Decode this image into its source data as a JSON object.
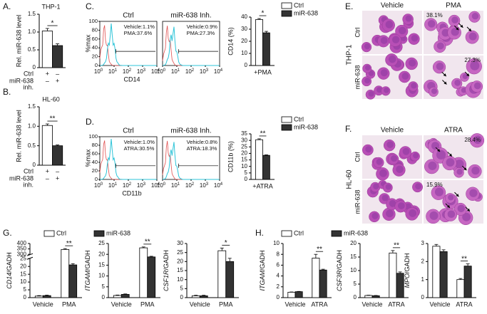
{
  "panel_labels": [
    "A.",
    "B.",
    "C.",
    "D.",
    "E.",
    "F.",
    "G.",
    "H."
  ],
  "chart_data": [
    {
      "type": "bar",
      "title": "THP-1",
      "ylabel": "Rel. miR-638 level",
      "ylim": [
        0,
        1.5
      ],
      "yticks": [
        0,
        0.5,
        {
          "value": 1,
          "label": "1.0"
        },
        1.5
      ],
      "values": [
        1.03,
        0.62
      ],
      "errors": [
        0.07,
        0.05
      ],
      "colors": [
        "#ffffff",
        "#333333"
      ],
      "significance": "*",
      "conditions": [
        {
          "label": [
            "Ctrl"
          ],
          "marks": [
            "+",
            "–"
          ]
        },
        {
          "label": [
            "miR-638",
            "inh."
          ],
          "marks": [
            "–",
            "+"
          ]
        }
      ]
    },
    {
      "type": "bar",
      "title": "HL-60",
      "ylabel": "Rel. miR-638 level",
      "ylim": [
        0,
        1.5
      ],
      "yticks": [
        0,
        0.5,
        {
          "value": 1,
          "label": "1.0"
        },
        1.5
      ],
      "values": [
        1.02,
        0.5
      ],
      "errors": [
        0.04,
        0.02
      ],
      "colors": [
        "#ffffff",
        "#333333"
      ],
      "significance": "**",
      "conditions": [
        {
          "label": [
            "Ctrl"
          ],
          "marks": [
            "+",
            "–"
          ]
        },
        {
          "label": [
            "miR-638",
            "inh."
          ],
          "marks": [
            "–",
            "+"
          ]
        }
      ]
    },
    {
      "type": "bar",
      "ylabel": "CD14 (%)",
      "ylim": [
        0,
        40
      ],
      "yticks": [
        0,
        10,
        20,
        30,
        40
      ],
      "categories": [
        "+PMA"
      ],
      "legend": "top-right",
      "significance": [
        "*"
      ],
      "series": [
        {
          "name": "Ctrl",
          "color": "#ffffff",
          "values": [
            38
          ],
          "errors": [
            0.8
          ]
        },
        {
          "name": "miR-638",
          "color": "#333333",
          "values": [
            27
          ],
          "errors": [
            1.2
          ]
        }
      ]
    },
    {
      "type": "bar",
      "ylabel": "CD11b (%)",
      "ylim": [
        0,
        35
      ],
      "yticks": [
        0,
        5,
        10,
        15,
        20,
        25,
        30,
        35
      ],
      "categories": [
        "+ATRA"
      ],
      "legend": "top-right",
      "significance": [
        "**"
      ],
      "series": [
        {
          "name": "Ctrl",
          "color": "#ffffff",
          "values": [
            30.5
          ],
          "errors": [
            0.7
          ]
        },
        {
          "name": "miR-638",
          "color": "#333333",
          "values": [
            18.5
          ],
          "errors": [
            0.4
          ]
        }
      ]
    },
    {
      "type": "bar",
      "ylabel": [
        "CD14",
        "/GADH"
      ],
      "ylim": [
        0,
        400
      ],
      "ybreak": [
        25,
        300
      ],
      "yticks": [
        0,
        5,
        10,
        15,
        20,
        25,
        300,
        350,
        400
      ],
      "categories": [
        "Vehicle",
        "PMA"
      ],
      "legend": "top",
      "significance": [
        null,
        "**"
      ],
      "series": [
        {
          "name": "Ctrl",
          "color": "#ffffff",
          "values": [
            1,
            345
          ],
          "errors": [
            0.3,
            8
          ]
        },
        {
          "name": "miR-638",
          "color": "#333333",
          "values": [
            1.3,
            21
          ],
          "errors": [
            0.3,
            0.8
          ]
        }
      ]
    },
    {
      "type": "bar",
      "ylabel": [
        "ITGAM",
        "/GADH"
      ],
      "ylim": [
        0,
        25
      ],
      "yticks": [
        0,
        5,
        10,
        15,
        20,
        25
      ],
      "categories": [
        "Vehicle",
        "PMA"
      ],
      "significance": [
        null,
        "**"
      ],
      "series": [
        {
          "color": "#ffffff",
          "values": [
            1,
            23
          ],
          "errors": [
            0.2,
            0.4
          ]
        },
        {
          "color": "#333333",
          "values": [
            1.5,
            18.8
          ],
          "errors": [
            0.2,
            0.3
          ]
        }
      ]
    },
    {
      "type": "bar",
      "ylabel": [
        "CSF1R",
        "/GADH"
      ],
      "ylim": [
        0,
        30
      ],
      "yticks": [
        0,
        5,
        10,
        15,
        20,
        25,
        30
      ],
      "categories": [
        "Vehicle",
        "PMA"
      ],
      "significance": [
        null,
        "*"
      ],
      "series": [
        {
          "color": "#ffffff",
          "values": [
            1,
            26
          ],
          "errors": [
            0.3,
            1.5
          ]
        },
        {
          "color": "#333333",
          "values": [
            1,
            20
          ],
          "errors": [
            0.3,
            1.8
          ]
        }
      ]
    },
    {
      "type": "bar",
      "ylabel": [
        "ITGAM",
        "/GADH"
      ],
      "ylim": [
        0,
        10
      ],
      "yticks": [
        0,
        2,
        4,
        6,
        8,
        10
      ],
      "categories": [
        "Vehicle",
        "ATRA"
      ],
      "legend": "top",
      "significance": [
        null,
        "**"
      ],
      "series": [
        {
          "name": "Ctrl",
          "color": "#ffffff",
          "values": [
            1,
            7.3
          ],
          "errors": [
            0.05,
            0.7
          ]
        },
        {
          "name": "miR-638",
          "color": "#333333",
          "values": [
            1.1,
            5.1
          ],
          "errors": [
            0.05,
            0.15
          ]
        }
      ]
    },
    {
      "type": "bar",
      "ylabel": [
        "CSF3R",
        "/GADH"
      ],
      "ylim": [
        0,
        20
      ],
      "yticks": [
        0,
        5,
        10,
        15,
        20
      ],
      "categories": [
        "Vehicle",
        "ATRA"
      ],
      "significance": [
        null,
        "**"
      ],
      "series": [
        {
          "color": "#ffffff",
          "values": [
            0.8,
            16.5
          ],
          "errors": [
            0.1,
            0.9
          ]
        },
        {
          "color": "#333333",
          "values": [
            0.7,
            9
          ],
          "errors": [
            0.1,
            0.5
          ]
        }
      ]
    },
    {
      "type": "bar",
      "ylabel": [
        "MPO",
        "/GADH"
      ],
      "ylim": [
        0,
        3
      ],
      "yticks": [
        0,
        1,
        2,
        3
      ],
      "categories": [
        "Vehicle",
        "ATRA"
      ],
      "significance": [
        null,
        "**"
      ],
      "series": [
        {
          "color": "#ffffff",
          "values": [
            2.85,
            1.0
          ],
          "errors": [
            0.1,
            0.06
          ]
        },
        {
          "color": "#333333",
          "values": [
            2.55,
            1.75
          ],
          "errors": [
            0.1,
            0.12
          ]
        }
      ]
    }
  ],
  "flow": [
    {
      "xlabel": "CD14",
      "ylabel": "%max",
      "ylim": [
        0,
        100
      ],
      "yticks": [
        0,
        20,
        40,
        60,
        80,
        100
      ],
      "xtick_base": "10",
      "xtick_exponents": [
        "0",
        "1",
        "2",
        "3",
        "4"
      ],
      "plots": [
        {
          "title": "Ctrl",
          "stats": [
            "Vehicle:1.1%",
            "PMA:37.6%"
          ]
        },
        {
          "title": "miR-638 Inh.",
          "stats": [
            "Vehicle:0.9%",
            "PMA:27.3%"
          ]
        }
      ]
    },
    {
      "xlabel": "CD11b",
      "ylabel": "%max",
      "ylim": [
        0,
        100
      ],
      "yticks": [
        0,
        20,
        40,
        60,
        80,
        100
      ],
      "xtick_base": "10",
      "xtick_exponents": [
        "0",
        "1",
        "2",
        "3",
        "4"
      ],
      "plots": [
        {
          "title": "Ctrl",
          "stats": [
            "Vehicle:1.0%",
            "ATRA:30.5%"
          ]
        },
        {
          "title": "miR-638 Inh.",
          "stats": [
            "Vehicle:0.8%",
            "ATRA:18.3%"
          ]
        }
      ]
    }
  ],
  "micrographs": [
    {
      "cell_line": "THP-1",
      "columns": [
        "Vehicle",
        "PMA"
      ],
      "rows": [
        "Ctrl",
        "miR-638"
      ],
      "annotations": [
        [
          null,
          "38.1%"
        ],
        [
          null,
          "27.3%"
        ]
      ]
    },
    {
      "cell_line": "HL-60",
      "columns": [
        "Vehicle",
        "ATRA"
      ],
      "rows": [
        "Ctrl",
        "miR-638"
      ],
      "annotations": [
        [
          null,
          "28.4%"
        ],
        [
          null,
          "15.9%"
        ]
      ]
    }
  ]
}
